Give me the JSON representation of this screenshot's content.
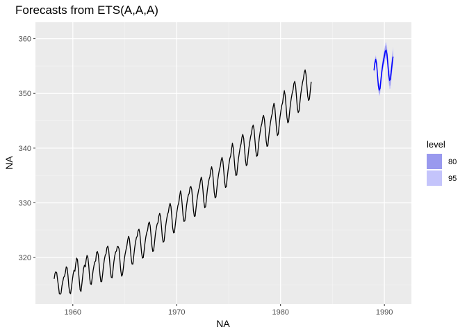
{
  "chart_data": {
    "type": "line",
    "title": "Forecasts from ETS(A,A,A)",
    "xlabel": "NA",
    "ylabel": "NA",
    "xlim": [
      1956.4,
      1992.6
    ],
    "ylim": [
      311.5,
      363
    ],
    "x_ticks": [
      {
        "value": 1960,
        "label": "1960"
      },
      {
        "value": 1970,
        "label": "1970"
      },
      {
        "value": 1980,
        "label": "1980"
      },
      {
        "value": 1990,
        "label": "1990"
      }
    ],
    "y_ticks": [
      {
        "value": 320,
        "label": "320"
      },
      {
        "value": 330,
        "label": "330"
      },
      {
        "value": 340,
        "label": "340"
      },
      {
        "value": 350,
        "label": "350"
      },
      {
        "value": 360,
        "label": "360"
      }
    ],
    "grid": true,
    "observed": {
      "start": 1958.2,
      "frequency": 12,
      "values": [
        316.1,
        317.1,
        317.4,
        317.2,
        315.9,
        314.8,
        313.4,
        313.3,
        313.5,
        314.8,
        315.6,
        316.4,
        316.6,
        317.3,
        318.3,
        318.1,
        316.7,
        314.7,
        313.6,
        313.4,
        314.5,
        315.8,
        317.0,
        317.7,
        317.5,
        318.9,
        319.9,
        319.6,
        317.8,
        315.9,
        314.1,
        313.8,
        315.1,
        316.6,
        318.0,
        318.6,
        318.3,
        319.6,
        320.4,
        320.0,
        318.5,
        316.3,
        315.2,
        315.1,
        316.3,
        317.6,
        318.5,
        319.2,
        319.4,
        320.9,
        321.1,
        320.5,
        318.8,
        316.8,
        315.6,
        315.6,
        316.9,
        318.4,
        319.6,
        320.4,
        320.7,
        321.8,
        322.1,
        321.4,
        319.6,
        317.6,
        316.4,
        316.3,
        317.7,
        319.2,
        320.3,
        321.0,
        321.2,
        322.0,
        322.0,
        321.6,
        319.5,
        317.6,
        316.6,
        316.9,
        318.1,
        319.6,
        320.6,
        321.4,
        322.1,
        323.2,
        323.9,
        323.4,
        321.7,
        319.9,
        318.8,
        318.8,
        320.3,
        321.7,
        322.8,
        323.6,
        323.9,
        324.9,
        325.2,
        324.4,
        322.7,
        320.9,
        319.9,
        320.0,
        321.3,
        322.7,
        323.8,
        324.6,
        325.0,
        326.2,
        326.5,
        325.8,
        324.0,
        322.1,
        321.1,
        321.3,
        322.8,
        324.3,
        325.3,
        326.1,
        326.4,
        327.6,
        328.1,
        327.4,
        325.7,
        323.7,
        322.8,
        323.0,
        324.4,
        325.9,
        327.0,
        327.9,
        328.3,
        329.4,
        329.9,
        329.3,
        327.4,
        325.4,
        324.5,
        324.6,
        326.0,
        327.4,
        328.5,
        329.5,
        330.0,
        331.2,
        332.2,
        331.4,
        329.6,
        327.6,
        326.6,
        326.7,
        328.0,
        329.5,
        330.6,
        331.4,
        331.7,
        332.8,
        333.0,
        332.4,
        330.6,
        328.6,
        327.5,
        327.6,
        329.1,
        330.5,
        331.5,
        332.4,
        332.9,
        334.0,
        334.7,
        334.0,
        332.2,
        330.2,
        329.1,
        329.3,
        330.8,
        332.3,
        333.4,
        334.3,
        334.8,
        336.0,
        336.6,
        335.8,
        334.0,
        331.9,
        330.9,
        331.1,
        332.6,
        334.1,
        335.2,
        336.1,
        336.7,
        337.8,
        338.3,
        337.6,
        335.8,
        333.8,
        332.8,
        333.0,
        334.6,
        336.0,
        337.1,
        338.1,
        338.6,
        339.8,
        340.9,
        340.0,
        338.1,
        336.1,
        335.0,
        335.1,
        336.7,
        338.1,
        339.2,
        340.2,
        340.8,
        342.0,
        342.5,
        341.8,
        339.9,
        337.9,
        336.8,
        337.0,
        338.5,
        340.0,
        341.1,
        342.1,
        342.7,
        343.8,
        344.2,
        343.4,
        341.5,
        339.5,
        338.5,
        338.7,
        340.3,
        341.8,
        342.9,
        343.9,
        344.5,
        345.6,
        346.0,
        345.2,
        343.3,
        341.3,
        340.3,
        340.5,
        342.1,
        343.6,
        344.7,
        345.7,
        346.3,
        347.5,
        348.2,
        347.4,
        345.4,
        343.4,
        342.3,
        342.6,
        344.2,
        345.7,
        346.8,
        347.8,
        348.3,
        349.6,
        350.5,
        349.6,
        347.6,
        345.6,
        344.6,
        344.9,
        346.5,
        348.0,
        349.1,
        350.0,
        350.6,
        351.8,
        352.2,
        351.4,
        349.4,
        347.4,
        346.5,
        346.8,
        348.4,
        349.9,
        351.0,
        352.0,
        352.7,
        353.8,
        354.3,
        353.5,
        351.5,
        349.5,
        348.7,
        349.0,
        350.6,
        352.1
      ]
    },
    "forecast": {
      "start": 1989.0,
      "frequency": 12,
      "mean": [
        354.2,
        355.6,
        356.2,
        355.4,
        353.4,
        351.4,
        350.6,
        350.9,
        352.5,
        354.0,
        355.1,
        356.1,
        356.8,
        357.7,
        357.9,
        357.2,
        355.3,
        353.3,
        352.4,
        352.6,
        354.1,
        355.6,
        356.7
      ],
      "pi80_halfwidth": [
        0.42,
        0.49,
        0.54,
        0.59,
        0.63,
        0.67,
        0.71,
        0.75,
        0.78,
        0.81,
        0.85,
        0.88,
        0.91,
        0.94,
        0.97,
        1.0,
        1.03,
        1.06,
        1.08,
        1.11,
        1.14,
        1.16,
        1.19
      ],
      "pi95_halfwidth": [
        0.64,
        0.75,
        0.83,
        0.9,
        0.97,
        1.03,
        1.09,
        1.15,
        1.2,
        1.25,
        1.3,
        1.35,
        1.4,
        1.44,
        1.49,
        1.53,
        1.57,
        1.62,
        1.66,
        1.7,
        1.74,
        1.78,
        1.82
      ]
    },
    "legend": {
      "title": "level",
      "position": "right",
      "entries": [
        {
          "label": "80",
          "color": "#9999ee"
        },
        {
          "label": "95",
          "color": "#c4c4fb"
        }
      ]
    },
    "colors": {
      "panel": "#ebebeb",
      "grid_major": "#ffffff",
      "observed_line": "#000000",
      "forecast_line": "#0000ff",
      "band80": "#9999ee",
      "band95": "#c4c4fb"
    }
  }
}
